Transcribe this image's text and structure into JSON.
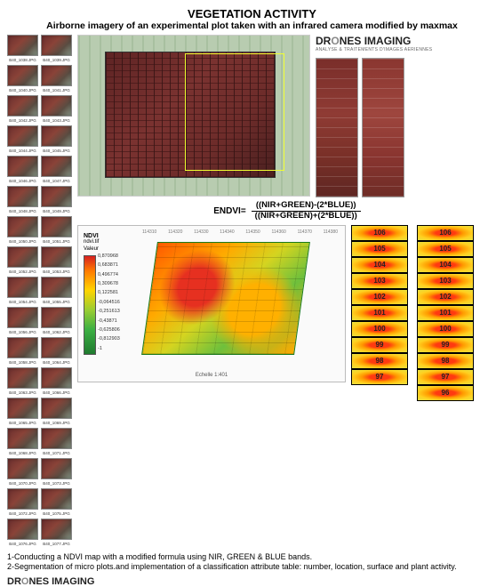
{
  "title": "VEGETATION ACTIVITY",
  "subtitle": "Airborne imagery of an experimental plot taken with an infrared camera modified by maxmax",
  "brand": {
    "name": "DRONES IMAGING",
    "tagline": "ANALYSE & TRAITEMENTS D'IMAGES AERIENNES"
  },
  "thumbnails": {
    "col1": [
      "B40_1038.JPG",
      "B40_1040.JPG",
      "B40_1042.JPG",
      "B40_1044.JPG",
      "B40_1046.JPG",
      "B40_1048.JPG",
      "B40_1050.JPG",
      "B40_1052.JPG",
      "B40_1054.JPG",
      "B40_1056.JPG",
      "B40_1058.JPG",
      "B40_1063.JPG",
      "B40_1065.JPG",
      "B40_1068.JPG",
      "B40_1070.JPG",
      "B40_1072.JPG",
      "B40_1076.JPG"
    ],
    "col2": [
      "B40_1039.JPG",
      "B40_1041.JPG",
      "B40_1043.JPG",
      "B40_1045.JPG",
      "B40_1047.JPG",
      "B40_1049.JPG",
      "B40_1051.JPG",
      "B40_1053.JPG",
      "B40_1055.JPG",
      "B40_1062.JPG",
      "B40_1064.JPG",
      "B40_1066.JPG",
      "B40_1069.JPG",
      "B40_1071.JPG",
      "B40_1073.JPG",
      "B40_1075.JPG",
      "B40_1077.JPG"
    ]
  },
  "formula": {
    "label": "ENDVI=",
    "numerator": "((NIR+GREEN)-(2*BLUE))",
    "denominator": "((NIR+GREEN)+(2*BLUE))"
  },
  "ndvi_legend": {
    "title": "NDVI",
    "subtitle1": "ndvi.tif",
    "subtitle2": "Valeur",
    "ticks": [
      "0,870968",
      "0,683871",
      "0,496774",
      "0,309678",
      "0,122581",
      "-0,064516",
      "-0,251613",
      "-0,43871",
      "-0,625806",
      "-0,812903",
      "-1"
    ],
    "gradient": [
      "#d62020",
      "#ff7a00",
      "#ffd400",
      "#9acd32",
      "#3cb043",
      "#1f7a2f"
    ]
  },
  "ndvi_map": {
    "top_coords": [
      "114310",
      "114320",
      "114330",
      "114340",
      "114350",
      "114360",
      "114370",
      "114380"
    ],
    "scale_label": "Echelle  1:401"
  },
  "class_labels_a": [
    "106",
    "105",
    "104",
    "103",
    "102",
    "101",
    "100",
    "99",
    "98",
    "97"
  ],
  "class_labels_b": [
    "106",
    "105",
    "104",
    "103",
    "102",
    "101",
    "100",
    "99",
    "98",
    "97",
    "96"
  ],
  "footer": {
    "line1": "1-Conducting a NDVI map with a modified formula using NIR, GREEN & BLUE bands.",
    "line2": "2-Segmentation of micro plots.and implementation of a classification attribute table: number, location, surface and plant activity."
  },
  "colors": {
    "highlight_border": "#f0ff30",
    "field_border": "#1a7a1a",
    "plot_red": "#7a3028",
    "bg": "#ffffff"
  }
}
